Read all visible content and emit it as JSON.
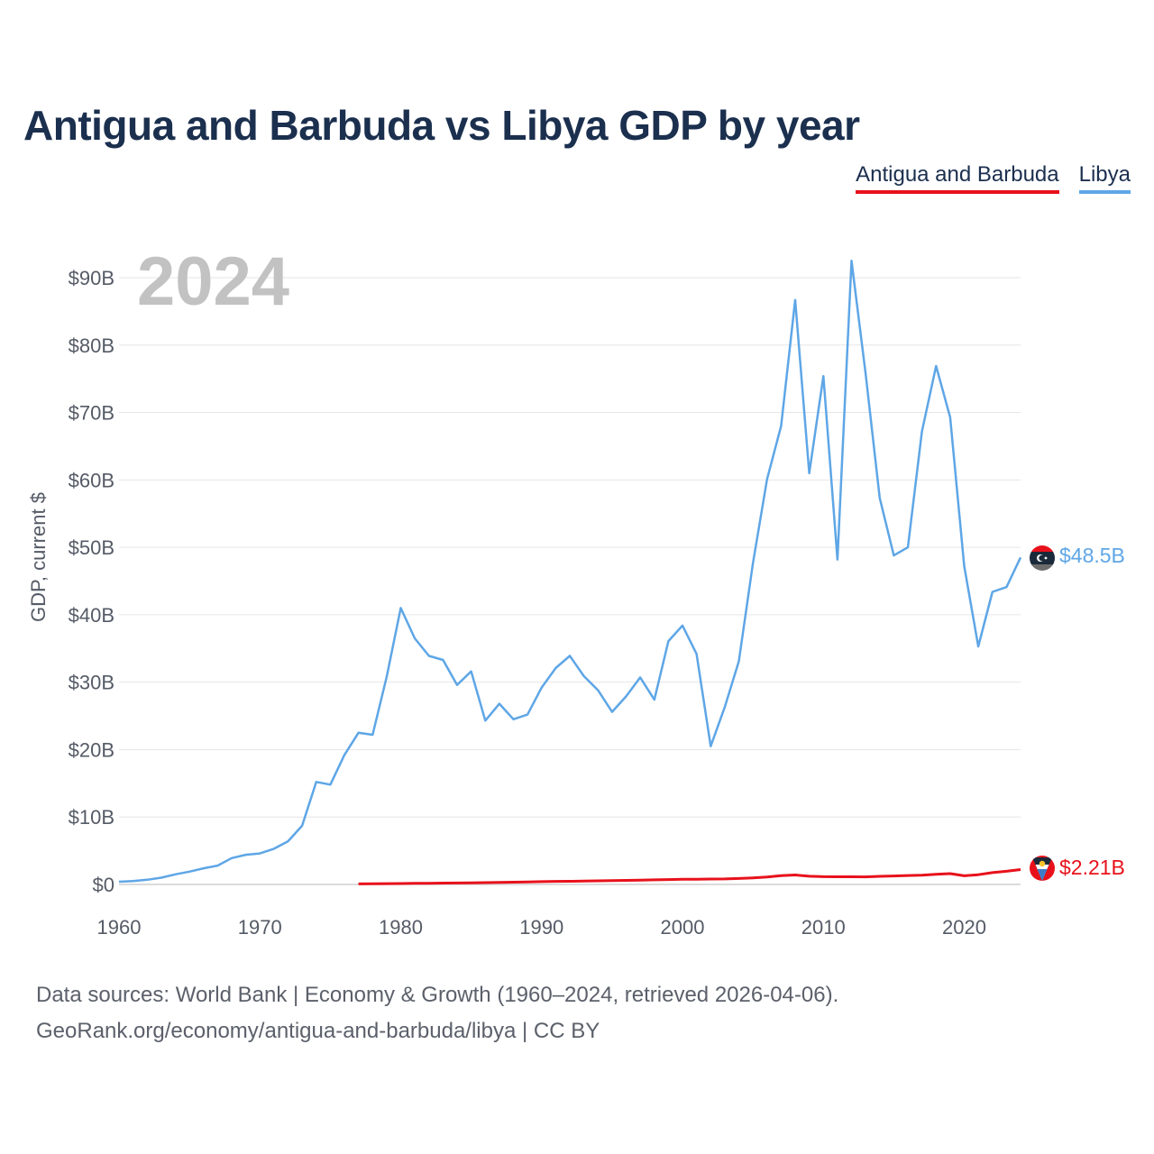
{
  "header": {
    "title": "Antigua and Barbuda vs Libya GDP by year"
  },
  "legend": {
    "antigua": "Antigua and Barbuda",
    "libya": "Libya"
  },
  "footer": {
    "line1": "Data sources: World Bank | Economy & Growth (1960–2024, retrieved 2026-04-06).",
    "line2": "GeoRank.org/economy/antigua-and-barbuda/libya | CC BY"
  },
  "chart_data": {
    "type": "line",
    "title": "Antigua and Barbuda vs Libya GDP by year",
    "ylabel": "GDP, current $",
    "xlabel": "",
    "year_label": "2024",
    "xlim": [
      1960,
      2024
    ],
    "ylim": [
      0,
      95
    ],
    "x_ticks": [
      1960,
      1970,
      1980,
      1990,
      2000,
      2010,
      2020
    ],
    "y_ticks": [
      {
        "value": 0,
        "label": "$0"
      },
      {
        "value": 10,
        "label": "$10B"
      },
      {
        "value": 20,
        "label": "$20B"
      },
      {
        "value": 30,
        "label": "$30B"
      },
      {
        "value": 40,
        "label": "$40B"
      },
      {
        "value": 50,
        "label": "$50B"
      },
      {
        "value": 60,
        "label": "$60B"
      },
      {
        "value": 70,
        "label": "$70B"
      },
      {
        "value": 80,
        "label": "$80B"
      },
      {
        "value": 90,
        "label": "$90B"
      }
    ],
    "series": [
      {
        "name": "Libya",
        "color": "#5ea6e6",
        "end_label": "$48.5B",
        "x": [
          1960,
          1961,
          1962,
          1963,
          1964,
          1965,
          1966,
          1967,
          1968,
          1969,
          1970,
          1971,
          1972,
          1973,
          1974,
          1975,
          1976,
          1977,
          1978,
          1979,
          1980,
          1981,
          1982,
          1983,
          1984,
          1985,
          1986,
          1987,
          1988,
          1989,
          1990,
          1991,
          1992,
          1993,
          1994,
          1995,
          1996,
          1997,
          1998,
          1999,
          2000,
          2001,
          2002,
          2003,
          2004,
          2005,
          2006,
          2007,
          2008,
          2009,
          2010,
          2011,
          2012,
          2013,
          2014,
          2015,
          2016,
          2017,
          2018,
          2019,
          2020,
          2021,
          2022,
          2023,
          2024
        ],
        "values": [
          0.4,
          0.5,
          0.7,
          1.0,
          1.5,
          1.9,
          2.4,
          2.8,
          3.9,
          4.4,
          4.6,
          5.3,
          6.4,
          8.7,
          15.2,
          14.8,
          19.2,
          22.5,
          22.2,
          30.8,
          41.0,
          36.5,
          33.9,
          33.3,
          29.6,
          31.6,
          24.3,
          26.8,
          24.5,
          25.2,
          29.2,
          32.1,
          33.9,
          30.9,
          28.8,
          25.6,
          27.9,
          30.7,
          27.4,
          36.1,
          38.4,
          34.2,
          20.5,
          26.3,
          33.1,
          47.6,
          60.1,
          68.0,
          86.7,
          61.0,
          75.4,
          48.2,
          92.5,
          75.8,
          57.3,
          48.8,
          50.0,
          67.2,
          76.9,
          69.3,
          47.2,
          35.3,
          43.4,
          44.1,
          48.5
        ]
      },
      {
        "name": "Antigua and Barbuda",
        "color": "#e8111b",
        "end_label": "$2.21B",
        "x": [
          1977,
          1978,
          1979,
          1980,
          1981,
          1982,
          1983,
          1984,
          1985,
          1986,
          1987,
          1988,
          1989,
          1990,
          1991,
          1992,
          1993,
          1994,
          1995,
          1996,
          1997,
          1998,
          1999,
          2000,
          2001,
          2002,
          2003,
          2004,
          2005,
          2006,
          2007,
          2008,
          2009,
          2010,
          2011,
          2012,
          2013,
          2014,
          2015,
          2016,
          2017,
          2018,
          2019,
          2020,
          2021,
          2022,
          2023,
          2024
        ],
        "values": [
          0.08,
          0.1,
          0.12,
          0.14,
          0.16,
          0.18,
          0.2,
          0.22,
          0.24,
          0.27,
          0.3,
          0.34,
          0.38,
          0.42,
          0.45,
          0.47,
          0.5,
          0.54,
          0.57,
          0.6,
          0.64,
          0.68,
          0.72,
          0.76,
          0.78,
          0.8,
          0.82,
          0.88,
          0.97,
          1.1,
          1.3,
          1.4,
          1.22,
          1.15,
          1.14,
          1.14,
          1.13,
          1.2,
          1.26,
          1.33,
          1.38,
          1.5,
          1.6,
          1.28,
          1.45,
          1.75,
          1.95,
          2.21
        ]
      }
    ]
  }
}
